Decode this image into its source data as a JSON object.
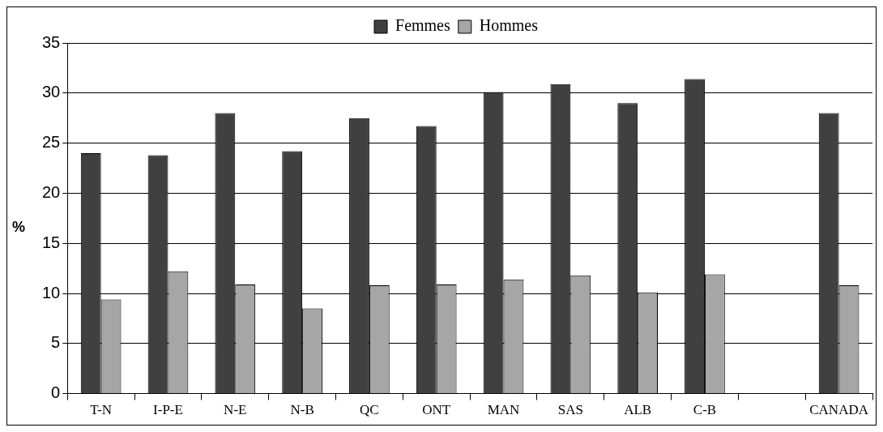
{
  "chart_data": {
    "type": "bar",
    "ylabel": "%",
    "categories": [
      "T-N",
      "I-P-E",
      "N-E",
      "N-B",
      "QC",
      "ONT",
      "MAN",
      "SAS",
      "ALB",
      "C-B",
      null,
      "CANADA"
    ],
    "series": [
      {
        "name": "Femmes",
        "color": "#404040",
        "values": [
          24.0,
          23.8,
          28.0,
          24.2,
          27.5,
          26.7,
          30.1,
          30.9,
          29.0,
          31.4,
          null,
          28.0
        ]
      },
      {
        "name": "Hommes",
        "color": "#a6a6a6",
        "values": [
          9.4,
          12.2,
          10.9,
          8.5,
          10.8,
          10.9,
          11.4,
          11.8,
          10.1,
          11.9,
          null,
          10.8
        ]
      }
    ],
    "ylim": [
      0,
      35
    ],
    "yticks": [
      0,
      5,
      10,
      15,
      20,
      25,
      30,
      35
    ],
    "grid": "y",
    "legend": "top"
  }
}
